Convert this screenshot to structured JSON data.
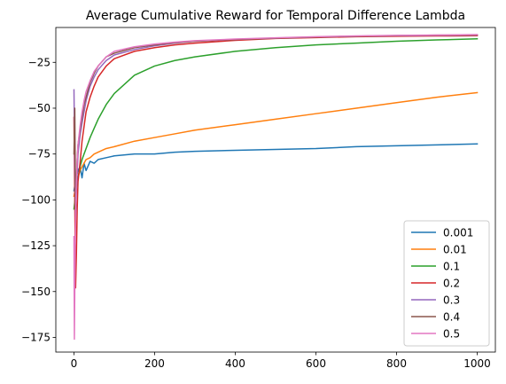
{
  "chart_data": {
    "type": "line",
    "title": "Average Cumulative Reward for Temporal Difference Lambda",
    "xlabel": "",
    "ylabel": "",
    "xlim": [
      -45,
      1045
    ],
    "ylim": [
      -183,
      -6
    ],
    "xticks": [
      0,
      200,
      400,
      600,
      800,
      1000
    ],
    "yticks": [
      -175,
      -150,
      -125,
      -100,
      -75,
      -50,
      -25
    ],
    "grid": false,
    "legend_position": "lower-right",
    "series": [
      {
        "name": "0.001",
        "color": "#1f77b4",
        "points": [
          [
            0,
            -95
          ],
          [
            5,
            -88
          ],
          [
            10,
            -84
          ],
          [
            15,
            -82
          ],
          [
            20,
            -88
          ],
          [
            25,
            -80
          ],
          [
            30,
            -84
          ],
          [
            40,
            -79
          ],
          [
            50,
            -80
          ],
          [
            60,
            -78
          ],
          [
            80,
            -77
          ],
          [
            100,
            -76
          ],
          [
            150,
            -75
          ],
          [
            200,
            -75
          ],
          [
            250,
            -74
          ],
          [
            300,
            -73.5
          ],
          [
            400,
            -73
          ],
          [
            500,
            -72.5
          ],
          [
            600,
            -72
          ],
          [
            700,
            -71
          ],
          [
            800,
            -70.5
          ],
          [
            900,
            -70
          ],
          [
            1000,
            -69.5
          ]
        ]
      },
      {
        "name": "0.01",
        "color": "#ff7f0e",
        "points": [
          [
            0,
            -98
          ],
          [
            5,
            -92
          ],
          [
            10,
            -88
          ],
          [
            15,
            -84
          ],
          [
            20,
            -82
          ],
          [
            25,
            -80
          ],
          [
            30,
            -78
          ],
          [
            40,
            -77
          ],
          [
            50,
            -75
          ],
          [
            60,
            -74
          ],
          [
            80,
            -72
          ],
          [
            100,
            -71
          ],
          [
            150,
            -68
          ],
          [
            200,
            -66
          ],
          [
            250,
            -64
          ],
          [
            300,
            -62
          ],
          [
            400,
            -59
          ],
          [
            500,
            -56
          ],
          [
            600,
            -53
          ],
          [
            700,
            -50
          ],
          [
            800,
            -47
          ],
          [
            900,
            -44
          ],
          [
            1000,
            -41.5
          ]
        ]
      },
      {
        "name": "0.1",
        "color": "#2ca02c",
        "points": [
          [
            0,
            -105
          ],
          [
            5,
            -95
          ],
          [
            10,
            -88
          ],
          [
            15,
            -82
          ],
          [
            20,
            -78
          ],
          [
            30,
            -72
          ],
          [
            40,
            -66
          ],
          [
            50,
            -61
          ],
          [
            60,
            -56
          ],
          [
            80,
            -48
          ],
          [
            100,
            -42
          ],
          [
            150,
            -32
          ],
          [
            200,
            -27
          ],
          [
            250,
            -24
          ],
          [
            300,
            -22
          ],
          [
            400,
            -19
          ],
          [
            500,
            -17
          ],
          [
            600,
            -15.5
          ],
          [
            700,
            -14.5
          ],
          [
            800,
            -13.5
          ],
          [
            900,
            -12.8
          ],
          [
            1000,
            -12.2
          ]
        ]
      },
      {
        "name": "0.2",
        "color": "#d62728",
        "points": [
          [
            0,
            -55
          ],
          [
            2,
            -100
          ],
          [
            4,
            -148
          ],
          [
            6,
            -130
          ],
          [
            8,
            -105
          ],
          [
            10,
            -90
          ],
          [
            15,
            -80
          ],
          [
            20,
            -68
          ],
          [
            25,
            -60
          ],
          [
            30,
            -52
          ],
          [
            40,
            -44
          ],
          [
            50,
            -38
          ],
          [
            60,
            -33
          ],
          [
            80,
            -27
          ],
          [
            100,
            -23
          ],
          [
            150,
            -19
          ],
          [
            200,
            -17
          ],
          [
            250,
            -15.5
          ],
          [
            300,
            -14.5
          ],
          [
            400,
            -13
          ],
          [
            500,
            -12
          ],
          [
            600,
            -11.5
          ],
          [
            700,
            -11
          ],
          [
            800,
            -10.8
          ],
          [
            900,
            -10.6
          ],
          [
            1000,
            -10.5
          ]
        ]
      },
      {
        "name": "0.3",
        "color": "#9467bd",
        "points": [
          [
            0,
            -40
          ],
          [
            2,
            -80
          ],
          [
            4,
            -110
          ],
          [
            6,
            -95
          ],
          [
            8,
            -85
          ],
          [
            10,
            -75
          ],
          [
            15,
            -65
          ],
          [
            20,
            -58
          ],
          [
            25,
            -52
          ],
          [
            30,
            -46
          ],
          [
            40,
            -38
          ],
          [
            50,
            -33
          ],
          [
            60,
            -29
          ],
          [
            80,
            -24
          ],
          [
            100,
            -21
          ],
          [
            150,
            -18
          ],
          [
            200,
            -16
          ],
          [
            250,
            -14.5
          ],
          [
            300,
            -13.5
          ],
          [
            400,
            -12.5
          ],
          [
            500,
            -11.8
          ],
          [
            600,
            -11.2
          ],
          [
            700,
            -10.8
          ],
          [
            800,
            -10.5
          ],
          [
            900,
            -10.3
          ],
          [
            1000,
            -10.2
          ]
        ]
      },
      {
        "name": "0.4",
        "color": "#8c564b",
        "points": [
          [
            0,
            -75
          ],
          [
            2,
            -50
          ],
          [
            4,
            -105
          ],
          [
            6,
            -90
          ],
          [
            8,
            -78
          ],
          [
            10,
            -70
          ],
          [
            15,
            -62
          ],
          [
            20,
            -55
          ],
          [
            25,
            -48
          ],
          [
            30,
            -44
          ],
          [
            40,
            -36
          ],
          [
            50,
            -31
          ],
          [
            60,
            -27
          ],
          [
            80,
            -22
          ],
          [
            100,
            -20
          ],
          [
            150,
            -17
          ],
          [
            200,
            -15.5
          ],
          [
            250,
            -14.3
          ],
          [
            300,
            -13.5
          ],
          [
            400,
            -12.5
          ],
          [
            500,
            -11.8
          ],
          [
            600,
            -11.2
          ],
          [
            700,
            -10.8
          ],
          [
            800,
            -10.4
          ],
          [
            900,
            -10.2
          ],
          [
            1000,
            -10.1
          ]
        ]
      },
      {
        "name": "0.5",
        "color": "#e377c2",
        "points": [
          [
            0,
            -120
          ],
          [
            1,
            -176
          ],
          [
            2,
            -150
          ],
          [
            4,
            -110
          ],
          [
            6,
            -90
          ],
          [
            8,
            -78
          ],
          [
            10,
            -70
          ],
          [
            15,
            -60
          ],
          [
            20,
            -52
          ],
          [
            25,
            -46
          ],
          [
            30,
            -41
          ],
          [
            40,
            -35
          ],
          [
            50,
            -30
          ],
          [
            60,
            -27
          ],
          [
            80,
            -22
          ],
          [
            100,
            -19
          ],
          [
            150,
            -16.5
          ],
          [
            200,
            -15
          ],
          [
            250,
            -14
          ],
          [
            300,
            -13.2
          ],
          [
            400,
            -12.3
          ],
          [
            500,
            -11.6
          ],
          [
            600,
            -11
          ],
          [
            700,
            -10.6
          ],
          [
            800,
            -10.3
          ],
          [
            900,
            -10.1
          ],
          [
            1000,
            -9.9
          ]
        ]
      }
    ]
  }
}
